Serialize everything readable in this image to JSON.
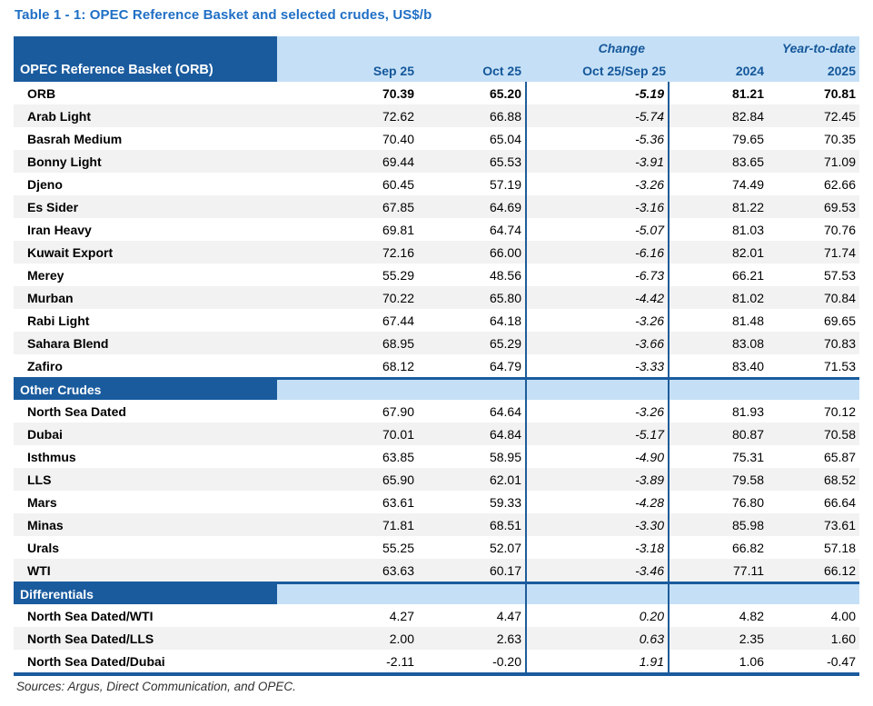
{
  "title": "Table 1 - 1: OPEC Reference Basket and selected crudes, US$/b",
  "header": {
    "label_col": "OPEC Reference Basket (ORB)",
    "group_change": "Change",
    "group_ytd": "Year-to-date",
    "columns": [
      "Sep 25",
      "Oct 25",
      "Oct 25/Sep 25",
      "2024",
      "2025"
    ]
  },
  "sections": [
    {
      "name": null,
      "rows": [
        {
          "label": "ORB",
          "bold": true,
          "values": [
            "70.39",
            "65.20",
            "-5.19",
            "81.21",
            "70.81"
          ]
        },
        {
          "label": "Arab Light",
          "values": [
            "72.62",
            "66.88",
            "-5.74",
            "82.84",
            "72.45"
          ]
        },
        {
          "label": "Basrah Medium",
          "values": [
            "70.40",
            "65.04",
            "-5.36",
            "79.65",
            "70.35"
          ]
        },
        {
          "label": "Bonny Light",
          "values": [
            "69.44",
            "65.53",
            "-3.91",
            "83.65",
            "71.09"
          ]
        },
        {
          "label": "Djeno",
          "values": [
            "60.45",
            "57.19",
            "-3.26",
            "74.49",
            "62.66"
          ]
        },
        {
          "label": "Es Sider",
          "values": [
            "67.85",
            "64.69",
            "-3.16",
            "81.22",
            "69.53"
          ]
        },
        {
          "label": "Iran Heavy",
          "values": [
            "69.81",
            "64.74",
            "-5.07",
            "81.03",
            "70.76"
          ]
        },
        {
          "label": "Kuwait Export",
          "values": [
            "72.16",
            "66.00",
            "-6.16",
            "82.01",
            "71.74"
          ]
        },
        {
          "label": "Merey",
          "values": [
            "55.29",
            "48.56",
            "-6.73",
            "66.21",
            "57.53"
          ]
        },
        {
          "label": "Murban",
          "values": [
            "70.22",
            "65.80",
            "-4.42",
            "81.02",
            "70.84"
          ]
        },
        {
          "label": "Rabi Light",
          "values": [
            "67.44",
            "64.18",
            "-3.26",
            "81.48",
            "69.65"
          ]
        },
        {
          "label": "Sahara Blend",
          "values": [
            "68.95",
            "65.29",
            "-3.66",
            "83.08",
            "70.83"
          ]
        },
        {
          "label": "Zafiro",
          "values": [
            "68.12",
            "64.79",
            "-3.33",
            "83.40",
            "71.53"
          ]
        }
      ]
    },
    {
      "name": "Other Crudes",
      "rows": [
        {
          "label": "North Sea Dated",
          "values": [
            "67.90",
            "64.64",
            "-3.26",
            "81.93",
            "70.12"
          ]
        },
        {
          "label": "Dubai",
          "values": [
            "70.01",
            "64.84",
            "-5.17",
            "80.87",
            "70.58"
          ]
        },
        {
          "label": "Isthmus",
          "values": [
            "63.85",
            "58.95",
            "-4.90",
            "75.31",
            "65.87"
          ]
        },
        {
          "label": "LLS",
          "values": [
            "65.90",
            "62.01",
            "-3.89",
            "79.58",
            "68.52"
          ]
        },
        {
          "label": "Mars",
          "values": [
            "63.61",
            "59.33",
            "-4.28",
            "76.80",
            "66.64"
          ]
        },
        {
          "label": "Minas",
          "values": [
            "71.81",
            "68.51",
            "-3.30",
            "85.98",
            "73.61"
          ]
        },
        {
          "label": "Urals",
          "values": [
            "55.25",
            "52.07",
            "-3.18",
            "66.82",
            "57.18"
          ]
        },
        {
          "label": "WTI",
          "values": [
            "63.63",
            "60.17",
            "-3.46",
            "77.11",
            "66.12"
          ]
        }
      ]
    },
    {
      "name": "Differentials",
      "rows": [
        {
          "label": "North Sea Dated/WTI",
          "values": [
            "4.27",
            "4.47",
            "0.20",
            "4.82",
            "4.00"
          ]
        },
        {
          "label": "North Sea Dated/LLS",
          "values": [
            "2.00",
            "2.63",
            "0.63",
            "2.35",
            "1.60"
          ]
        },
        {
          "label": "North Sea Dated/Dubai",
          "values": [
            "-2.11",
            "-0.20",
            "1.91",
            "1.06",
            "-0.47"
          ]
        }
      ]
    }
  ],
  "footer": "Sources:  Argus, Direct Communication, and OPEC.",
  "colors": {
    "dark_blue": "#1A5B9E",
    "light_blue": "#C5E0F6",
    "stripe_gray": "#F2F2F2",
    "line_blue": "#1F5C99",
    "title_blue": "#1F6FC5",
    "header_text_blue": "#15579A"
  }
}
